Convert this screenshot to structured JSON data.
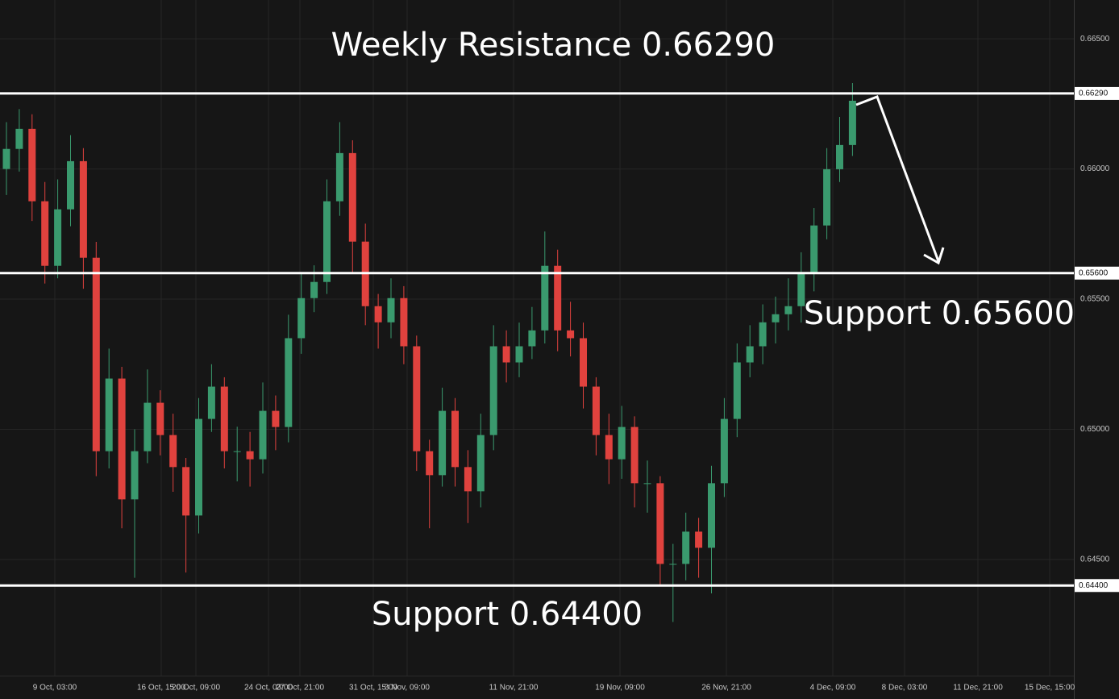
{
  "chart_data": {
    "type": "candlestick",
    "open": [
      0.66,
      0.66077,
      0.66154,
      0.65876,
      0.65628,
      0.65845,
      0.6603,
      0.65659,
      0.64916,
      0.65195,
      0.64731,
      0.64916,
      0.65102,
      0.64978,
      0.64855,
      0.64669,
      0.6504,
      0.65164,
      0.64916,
      0.64916,
      0.64885,
      0.65071,
      0.65009,
      0.6535,
      0.65504,
      0.65566,
      0.65876,
      0.66061,
      0.65721,
      0.65473,
      0.65411,
      0.65504,
      0.65319,
      0.64916,
      0.64824,
      0.65071,
      0.64855,
      0.64762,
      0.64978,
      0.65319,
      0.65257,
      0.65319,
      0.6538,
      0.65628,
      0.6538,
      0.6535,
      0.65164,
      0.64978,
      0.64885,
      0.65009,
      0.64793,
      0.64793,
      0.64483,
      0.64483,
      0.64607,
      0.64545,
      0.64793,
      0.6504,
      0.65257,
      0.65319,
      0.65411,
      0.65442,
      0.65473,
      0.65597,
      0.65783,
      0.65999,
      0.66092
    ],
    "high": [
      0.6618,
      0.6623,
      0.6621,
      0.6595,
      0.6596,
      0.6613,
      0.6608,
      0.6572,
      0.6531,
      0.6524,
      0.65,
      0.6523,
      0.6515,
      0.6506,
      0.6489,
      0.6512,
      0.6525,
      0.652,
      0.6501,
      0.6499,
      0.6518,
      0.6513,
      0.6544,
      0.656,
      0.6563,
      0.6596,
      0.6618,
      0.6611,
      0.6579,
      0.6552,
      0.6558,
      0.6555,
      0.6536,
      0.6496,
      0.6516,
      0.6512,
      0.6492,
      0.6506,
      0.654,
      0.6538,
      0.6541,
      0.6547,
      0.6576,
      0.6569,
      0.6549,
      0.6541,
      0.652,
      0.6506,
      0.6509,
      0.6505,
      0.6488,
      0.6482,
      0.6456,
      0.6468,
      0.6466,
      0.6486,
      0.6512,
      0.6533,
      0.654,
      0.6548,
      0.6551,
      0.6558,
      0.6568,
      0.6585,
      0.6608,
      0.662,
      0.6633
    ],
    "low": [
      0.659,
      0.6599,
      0.658,
      0.6556,
      0.6558,
      0.6578,
      0.6554,
      0.6482,
      0.6485,
      0.6462,
      0.6443,
      0.6487,
      0.649,
      0.6476,
      0.6445,
      0.646,
      0.6499,
      0.6485,
      0.648,
      0.6478,
      0.6483,
      0.6492,
      0.6495,
      0.6529,
      0.6545,
      0.6552,
      0.6582,
      0.656,
      0.654,
      0.6531,
      0.6535,
      0.6525,
      0.6484,
      0.6462,
      0.6478,
      0.6478,
      0.6464,
      0.647,
      0.6492,
      0.6518,
      0.652,
      0.6527,
      0.6533,
      0.653,
      0.6528,
      0.6508,
      0.649,
      0.6479,
      0.6481,
      0.647,
      0.6468,
      0.644,
      0.6426,
      0.6442,
      0.6443,
      0.6437,
      0.6474,
      0.6497,
      0.652,
      0.6525,
      0.6533,
      0.6538,
      0.6541,
      0.6553,
      0.6573,
      0.6595,
      0.6605
    ],
    "close": [
      0.66077,
      0.66154,
      0.65876,
      0.65628,
      0.65845,
      0.6603,
      0.65659,
      0.64916,
      0.65195,
      0.64731,
      0.64916,
      0.65102,
      0.64978,
      0.64855,
      0.64669,
      0.6504,
      0.65164,
      0.64916,
      0.64916,
      0.64885,
      0.65071,
      0.65009,
      0.6535,
      0.65504,
      0.65566,
      0.65876,
      0.66061,
      0.65721,
      0.65473,
      0.65411,
      0.65504,
      0.65319,
      0.64916,
      0.64824,
      0.65071,
      0.64855,
      0.64762,
      0.64978,
      0.65319,
      0.65257,
      0.65319,
      0.6538,
      0.65628,
      0.6538,
      0.6535,
      0.65164,
      0.64978,
      0.64885,
      0.65009,
      0.64793,
      0.64793,
      0.64483,
      0.64483,
      0.64607,
      0.64545,
      0.64793,
      0.6504,
      0.65257,
      0.65319,
      0.65411,
      0.65442,
      0.65473,
      0.65597,
      0.65783,
      0.65999,
      0.66092,
      0.66262
    ],
    "up_color": "#3a9a6e",
    "down_color": "#e0423e",
    "ylim": [
      0.64054,
      0.66649
    ],
    "yticks": [
      {
        "value": 0.665,
        "label": "0.66500"
      },
      {
        "value": 0.66,
        "label": "0.66000"
      },
      {
        "value": 0.655,
        "label": "0.65500"
      },
      {
        "value": 0.65,
        "label": "0.65000"
      },
      {
        "value": 0.645,
        "label": "0.64500"
      }
    ],
    "xtick_labels": [
      "9 Oct, 03:00",
      "16 Oct, 15:00",
      "20 Oct, 09:00",
      "24 Oct, 03:00",
      "27 Oct, 21:00",
      "31 Oct, 15:00",
      "3 Nov, 09:00",
      "11 Nov, 21:00",
      "19 Nov, 09:00",
      "26 Nov, 21:00",
      "4 Dec, 09:00",
      "8 Dec, 03:00",
      "11 Dec, 21:00",
      "15 Dec, 15:00"
    ],
    "grid": true,
    "levels": [
      {
        "value": 0.6629,
        "label": "0.66290"
      },
      {
        "value": 0.656,
        "label": "0.65600"
      },
      {
        "value": 0.644,
        "label": "0.64400"
      }
    ],
    "annotations": [
      "Weekly Resistance 0.66290",
      "Support 0.65600",
      "Support 0.64400"
    ]
  }
}
